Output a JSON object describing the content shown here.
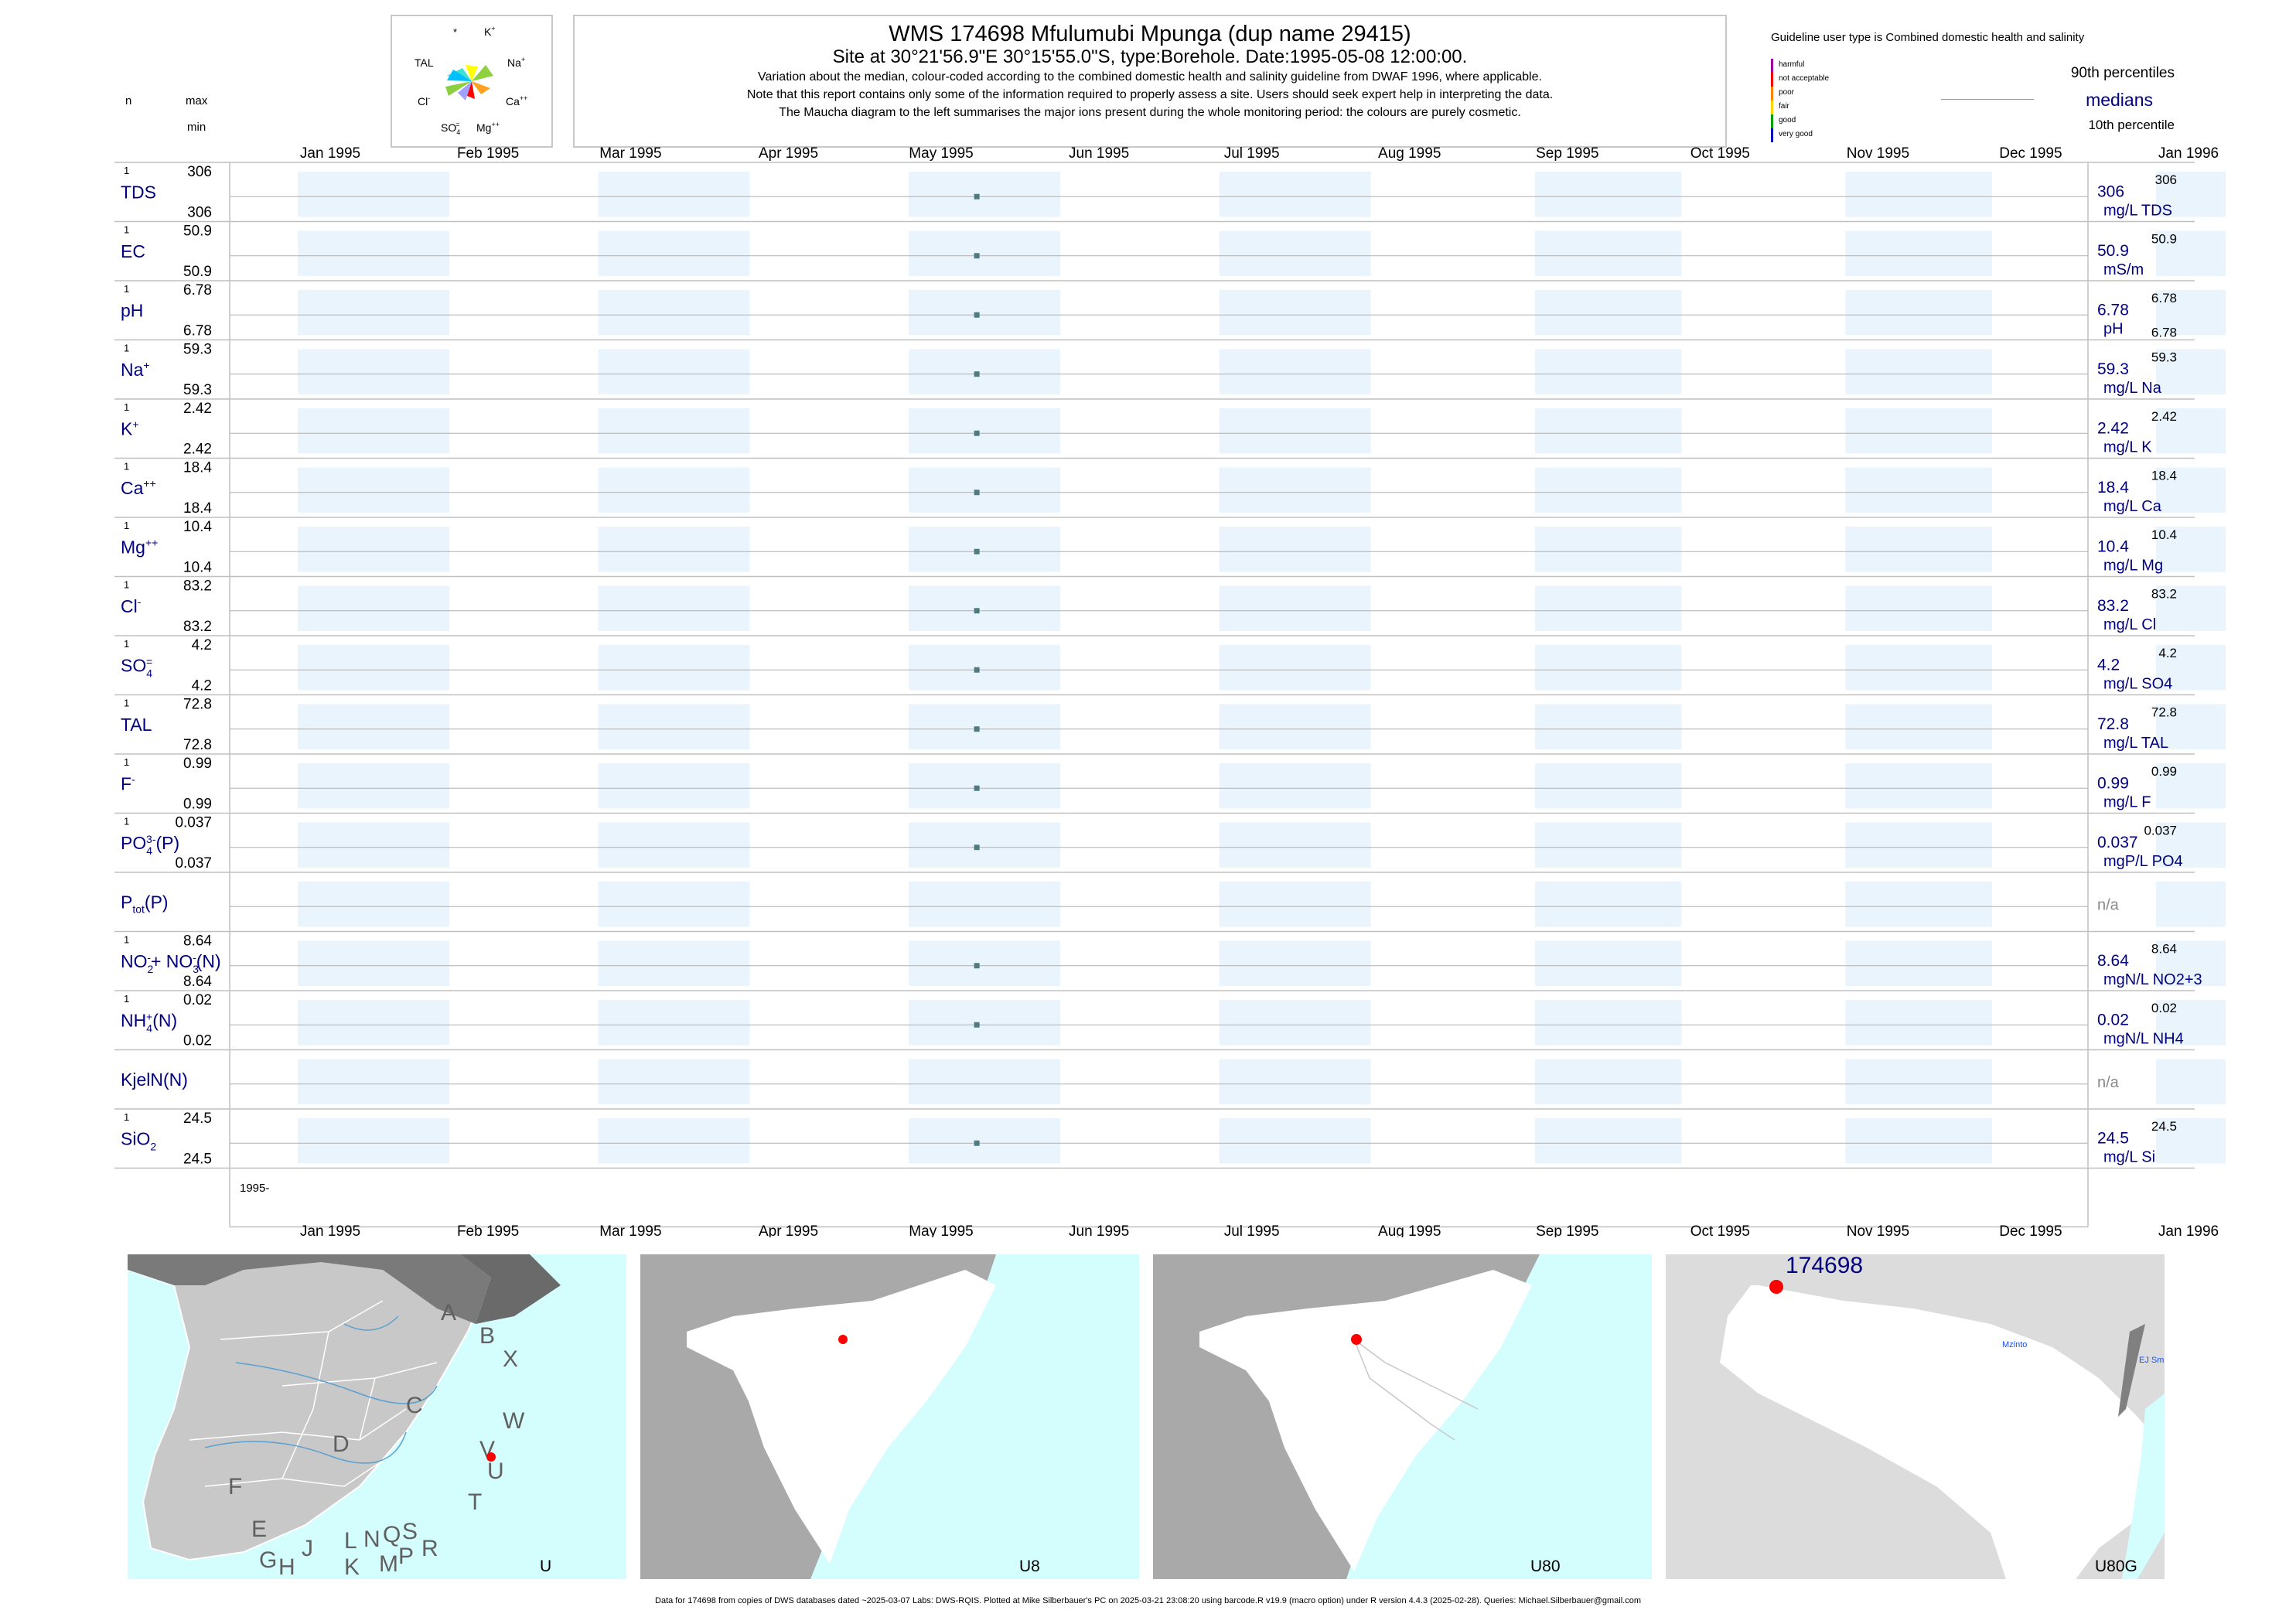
{
  "header": {
    "title": "WMS 174698  Mfulumubi Mpunga (dup name 29415)",
    "subtitle": "Site at 30°21'56.9\"E 30°15'55.0\"S, type:Borehole. Date:1995-05-08 12:00:00.",
    "note1": "Variation about the median,  colour-coded according to the combined domestic health and salinity guideline from DWAF 1996, where applicable.",
    "note2": "Note that this report contains only some of the information required to properly assess a site. Users should seek expert help in interpreting the data.",
    "note3": "The Maucha diagram to the left summarises the major ions present during the whole monitoring period: the colours are purely cosmetic."
  },
  "left_header": {
    "n": "n",
    "max": "max",
    "min": "min"
  },
  "maucha": {
    "labels": [
      "*",
      "K+",
      "TAL",
      "Na+",
      "Cl-",
      "Ca++",
      "SO4=",
      "Mg++"
    ],
    "colors": [
      "#ffff00",
      "#00c0ff",
      "#ff6a00",
      "#90d040",
      "#ffa020",
      "#ff0000",
      "#40e0a0",
      "#a0a0ff"
    ]
  },
  "legend": {
    "guideline_text": "Guideline user type is Combined domestic health and salinity",
    "categories": [
      "harmful",
      "not acceptable",
      "poor",
      "fair",
      "good",
      "very good"
    ],
    "category_colors": [
      "#a000a0",
      "#ff0000",
      "#ff8000",
      "#ffd700",
      "#00a000",
      "#0000c0"
    ],
    "p90": "90th percentiles",
    "medians": "medians",
    "p10": "10th percentile"
  },
  "chart_data": {
    "type": "scatter",
    "x_axis": {
      "ticks": [
        "Jan 1995",
        "Feb 1995",
        "Mar 1995",
        "Apr 1995",
        "May 1995",
        "Jun 1995",
        "Jul 1995",
        "Aug 1995",
        "Sep 1995",
        "Oct 1995",
        "Nov 1995",
        "Dec 1995",
        "Jan 1996"
      ],
      "range": [
        "1995-01-01",
        "1996-01-01"
      ],
      "year_label": "1995-"
    },
    "sample_date": "1995-05-08",
    "series": [
      {
        "name": "TDS",
        "label": "TDS",
        "n": "1",
        "max": "306",
        "min": "306",
        "median": "306",
        "unit": "mg/L TDS",
        "p90": "306",
        "p10": "",
        "value": 306
      },
      {
        "name": "EC",
        "label": "EC",
        "n": "1",
        "max": "50.9",
        "min": "50.9",
        "median": "50.9",
        "unit": "mS/m",
        "p90": "50.9",
        "p10": "",
        "value": 50.9
      },
      {
        "name": "pH",
        "label": "pH",
        "n": "1",
        "max": "6.78",
        "min": "6.78",
        "median": "6.78",
        "unit": "pH",
        "p90": "6.78",
        "p10": "6.78",
        "value": 6.78
      },
      {
        "name": "Na",
        "label": "Na",
        "sup": "+",
        "n": "1",
        "max": "59.3",
        "min": "59.3",
        "median": "59.3",
        "unit": "mg/L Na",
        "p90": "59.3",
        "p10": "",
        "value": 59.3
      },
      {
        "name": "K",
        "label": "K",
        "sup": "+",
        "n": "1",
        "max": "2.42",
        "min": "2.42",
        "median": "2.42",
        "unit": "mg/L K",
        "p90": "2.42",
        "p10": "",
        "value": 2.42
      },
      {
        "name": "Ca",
        "label": "Ca",
        "sup": "++",
        "n": "1",
        "max": "18.4",
        "min": "18.4",
        "median": "18.4",
        "unit": "mg/L Ca",
        "p90": "18.4",
        "p10": "",
        "value": 18.4
      },
      {
        "name": "Mg",
        "label": "Mg",
        "sup": "++",
        "n": "1",
        "max": "10.4",
        "min": "10.4",
        "median": "10.4",
        "unit": "mg/L Mg",
        "p90": "10.4",
        "p10": "",
        "value": 10.4
      },
      {
        "name": "Cl",
        "label": "Cl",
        "sup": "-",
        "n": "1",
        "max": "83.2",
        "min": "83.2",
        "median": "83.2",
        "unit": "mg/L Cl",
        "p90": "83.2",
        "p10": "",
        "value": 83.2
      },
      {
        "name": "SO4",
        "label": "SO",
        "sub": "4",
        "sup": "=",
        "n": "1",
        "max": "4.2",
        "min": "4.2",
        "median": "4.2",
        "unit": "mg/L SO4",
        "p90": "4.2",
        "p10": "",
        "value": 4.2
      },
      {
        "name": "TAL",
        "label": "TAL",
        "n": "1",
        "max": "72.8",
        "min": "72.8",
        "median": "72.8",
        "unit": "mg/L TAL",
        "p90": "72.8",
        "p10": "",
        "value": 72.8
      },
      {
        "name": "F",
        "label": "F",
        "sup": "-",
        "n": "1",
        "max": "0.99",
        "min": "0.99",
        "median": "0.99",
        "unit": "mg/L F",
        "p90": "0.99",
        "p10": "",
        "value": 0.99
      },
      {
        "name": "PO4",
        "label": "PO",
        "sub": "4",
        "sup": "3-",
        "tail": "(P)",
        "n": "1",
        "max": "0.037",
        "min": "0.037",
        "median": "0.037",
        "unit": "mgP/L PO4",
        "p90": "0.037",
        "p10": "",
        "value": 0.037
      },
      {
        "name": "Ptot",
        "label": "P",
        "sub": "tot",
        "tail": "(P)",
        "n": "",
        "max": "",
        "min": "",
        "median": "n/a",
        "unit": "",
        "p90": "",
        "p10": "",
        "value": null
      },
      {
        "name": "NO2+NO3",
        "label": "NO",
        "sub": "2",
        "sup": "-",
        "tail": "+ NO",
        "sub2": "3",
        "sup2": "-",
        "tail2": "(N)",
        "n": "1",
        "max": "8.64",
        "min": "8.64",
        "median": "8.64",
        "unit": "mgN/L NO2+3",
        "p90": "8.64",
        "p10": "",
        "value": 8.64
      },
      {
        "name": "NH4",
        "label": "NH",
        "sub": "4",
        "sup": "+",
        "tail": "(N)",
        "n": "1",
        "max": "0.02",
        "min": "0.02",
        "median": "0.02",
        "unit": "mgN/L NH4",
        "p90": "0.02",
        "p10": "",
        "value": 0.02
      },
      {
        "name": "KjelN",
        "label": "KjelN(N)",
        "n": "",
        "max": "",
        "min": "",
        "median": "n/a",
        "unit": "",
        "p90": "",
        "p10": "",
        "value": null
      },
      {
        "name": "SiO2",
        "label": "SiO",
        "sub": "2",
        "n": "1",
        "max": "24.5",
        "min": "24.5",
        "median": "24.5",
        "unit": "mg/L Si",
        "p90": "24.5",
        "p10": "",
        "value": 24.5
      }
    ]
  },
  "maps": [
    {
      "label": "U",
      "letters": [
        "A",
        "B",
        "X",
        "C",
        "W",
        "V",
        "D",
        "U",
        "F",
        "T",
        "E",
        "J",
        "L",
        "N",
        "Q",
        "S",
        "R",
        "P",
        "M",
        "K",
        "G",
        "H"
      ]
    },
    {
      "label": "U8"
    },
    {
      "label": "U80"
    },
    {
      "label": "U80G",
      "site": "174698",
      "places": [
        "Mzinto",
        "EJ Sm"
      ]
    }
  ],
  "footer": "Data for 174698 from copies of DWS databases dated ~2025-03-07 Labs: DWS-RQIS. Plotted at Mike Silberbauer's PC on 2025-03-21 23:08:20 using barcode.R v19.9 (macro option) under R version 4.4.3 (2025-02-28). Queries: Michael.Silberbauer@gmail.com"
}
